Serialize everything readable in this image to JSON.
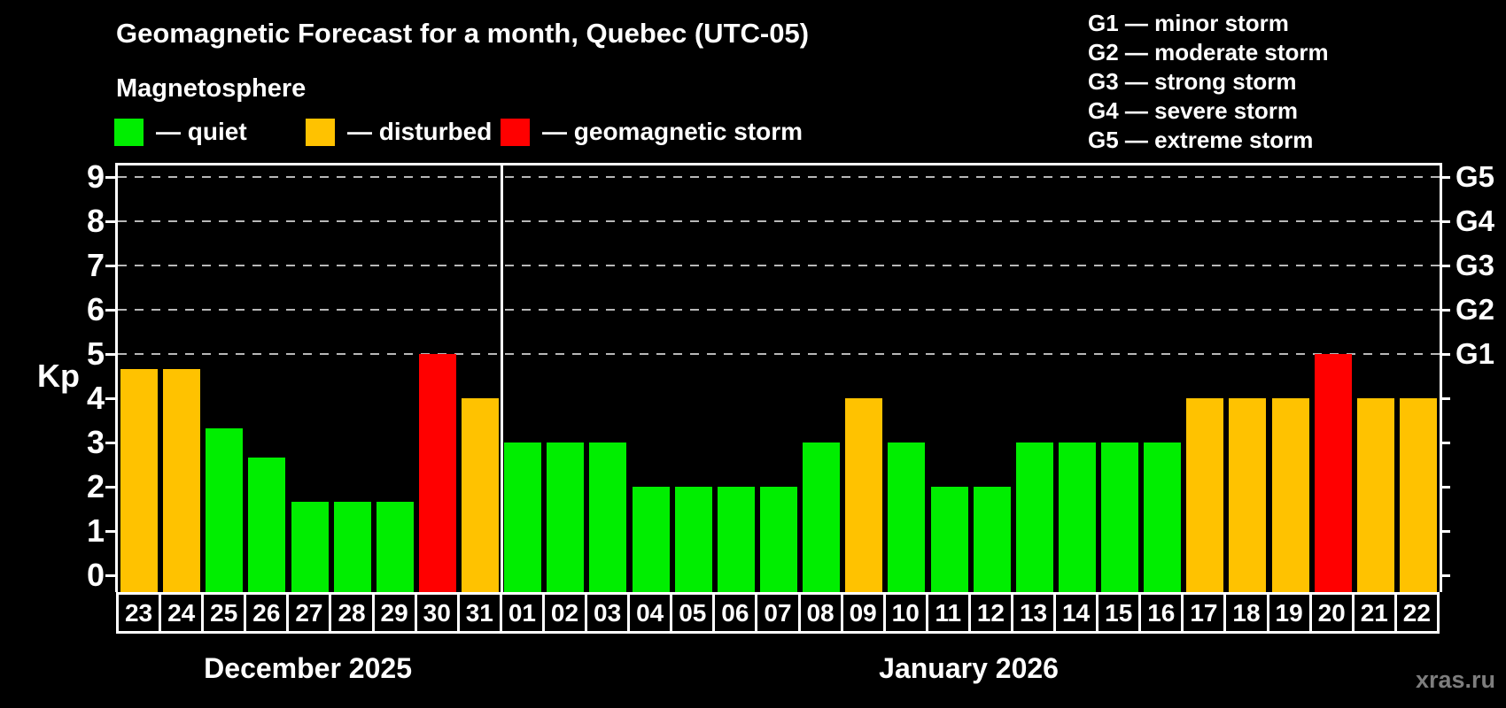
{
  "header": {
    "title": "Geomagnetic Forecast for a month, Quebec (UTC-05)",
    "subtitle": "Magnetosphere"
  },
  "kp_legend": {
    "items": [
      {
        "status": "quiet",
        "label": "— quiet",
        "color": "#00ee00"
      },
      {
        "status": "disturbed",
        "label": "— disturbed",
        "color": "#ffc200"
      },
      {
        "status": "storm",
        "label": "— geomagnetic storm",
        "color": "#ff0000"
      }
    ]
  },
  "g_legend": {
    "items": [
      "G1 — minor storm",
      "G2 — moderate storm",
      "G3 — strong storm",
      "G4 — severe storm",
      "G5 — extreme storm"
    ]
  },
  "chart_data": {
    "type": "bar",
    "title": "Geomagnetic Forecast for a month, Quebec (UTC-05)",
    "xlabel": "",
    "ylabel": "Kp",
    "ylim": [
      0,
      9.3
    ],
    "y_ticks": [
      0,
      1,
      2,
      3,
      4,
      5,
      6,
      7,
      8,
      9
    ],
    "grid": "dashed horizontal lines at Kp 5 through 9",
    "legend_position": "top",
    "right_axis_labels": [
      {
        "kp": 5,
        "label": "G1"
      },
      {
        "kp": 6,
        "label": "G2"
      },
      {
        "kp": 7,
        "label": "G3"
      },
      {
        "kp": 8,
        "label": "G4"
      },
      {
        "kp": 9,
        "label": "G5"
      }
    ],
    "status_colors": {
      "quiet": "#00ee00",
      "disturbed": "#ffc200",
      "storm": "#ff0000"
    },
    "groups": [
      {
        "month_label": "December 2025",
        "days": [
          {
            "day": "23",
            "kp": 4.67,
            "status": "disturbed"
          },
          {
            "day": "24",
            "kp": 4.67,
            "status": "disturbed"
          },
          {
            "day": "25",
            "kp": 3.33,
            "status": "quiet"
          },
          {
            "day": "26",
            "kp": 2.67,
            "status": "quiet"
          },
          {
            "day": "27",
            "kp": 1.67,
            "status": "quiet"
          },
          {
            "day": "28",
            "kp": 1.67,
            "status": "quiet"
          },
          {
            "day": "29",
            "kp": 1.67,
            "status": "quiet"
          },
          {
            "day": "30",
            "kp": 5,
            "status": "storm"
          },
          {
            "day": "31",
            "kp": 4,
            "status": "disturbed"
          }
        ]
      },
      {
        "month_label": "January 2026",
        "days": [
          {
            "day": "01",
            "kp": 3,
            "status": "quiet"
          },
          {
            "day": "02",
            "kp": 3,
            "status": "quiet"
          },
          {
            "day": "03",
            "kp": 3,
            "status": "quiet"
          },
          {
            "day": "04",
            "kp": 2,
            "status": "quiet"
          },
          {
            "day": "05",
            "kp": 2,
            "status": "quiet"
          },
          {
            "day": "06",
            "kp": 2,
            "status": "quiet"
          },
          {
            "day": "07",
            "kp": 2,
            "status": "quiet"
          },
          {
            "day": "08",
            "kp": 3,
            "status": "quiet"
          },
          {
            "day": "09",
            "kp": 4,
            "status": "disturbed"
          },
          {
            "day": "10",
            "kp": 3,
            "status": "quiet"
          },
          {
            "day": "11",
            "kp": 2,
            "status": "quiet"
          },
          {
            "day": "12",
            "kp": 2,
            "status": "quiet"
          },
          {
            "day": "13",
            "kp": 3,
            "status": "quiet"
          },
          {
            "day": "14",
            "kp": 3,
            "status": "quiet"
          },
          {
            "day": "15",
            "kp": 3,
            "status": "quiet"
          },
          {
            "day": "16",
            "kp": 3,
            "status": "quiet"
          },
          {
            "day": "17",
            "kp": 4,
            "status": "disturbed"
          },
          {
            "day": "18",
            "kp": 4,
            "status": "disturbed"
          },
          {
            "day": "19",
            "kp": 4,
            "status": "disturbed"
          },
          {
            "day": "20",
            "kp": 5,
            "status": "storm"
          },
          {
            "day": "21",
            "kp": 4,
            "status": "disturbed"
          },
          {
            "day": "22",
            "kp": 4,
            "status": "disturbed"
          }
        ]
      }
    ]
  },
  "footer": {
    "watermark": "xras.ru"
  }
}
